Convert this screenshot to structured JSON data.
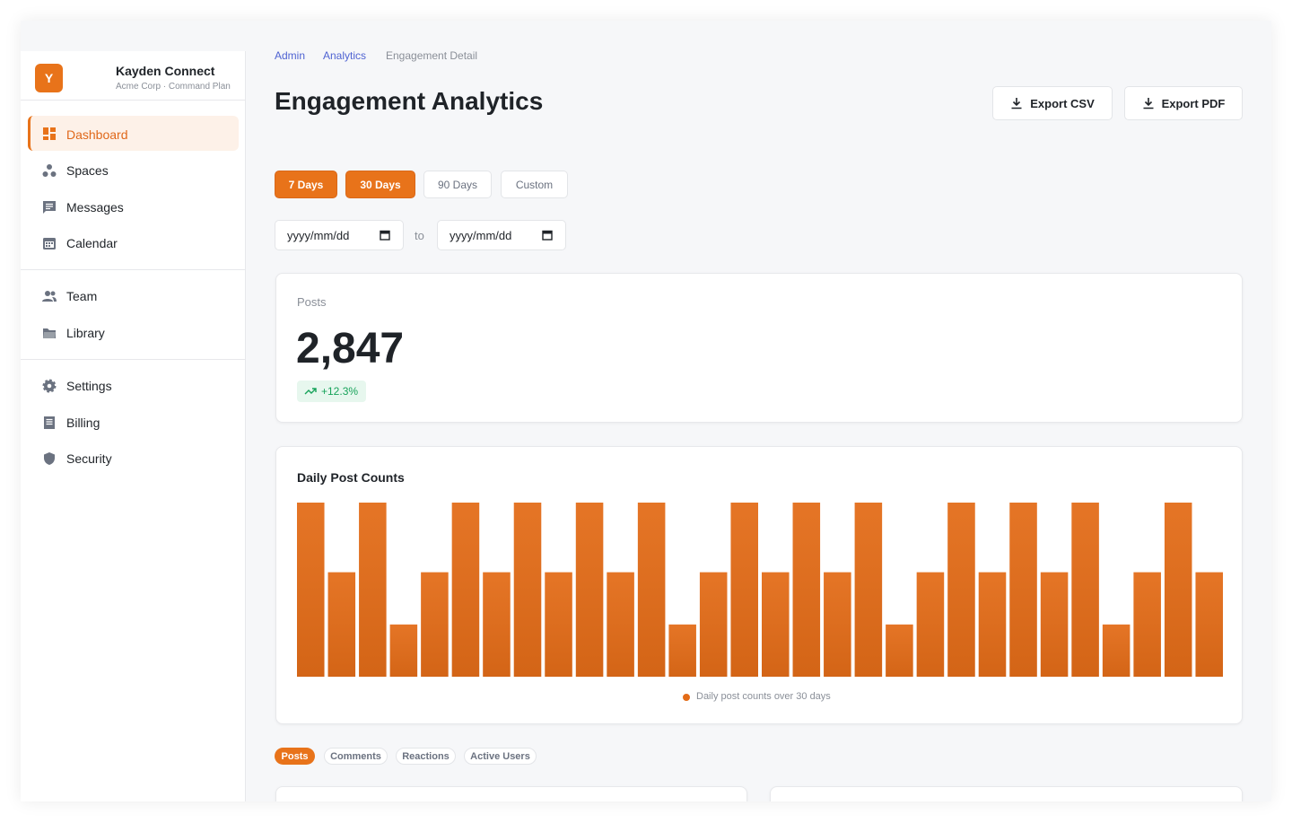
{
  "sidebar": {
    "brand": {
      "initial": "Y",
      "name": "Kayden Connect",
      "subtitle": "Acme Corp · Command Plan"
    },
    "nav": [
      [
        "Dashboard",
        "Spaces",
        "Messages",
        "Calendar"
      ],
      [
        "Team",
        "Library"
      ],
      [
        "Settings",
        "Billing",
        "Security"
      ]
    ]
  },
  "breadcrumb": [
    "Admin",
    "Analytics",
    "Engagement Detail"
  ],
  "header": {
    "title": "Engagement Analytics",
    "actions": [
      "Export CSV",
      "Export PDF"
    ]
  },
  "ranges": [
    "7 Days",
    "30 Days",
    "90 Days",
    "Custom"
  ],
  "date_inputs": {
    "placeholder": "yyyy/mm/dd",
    "separator": "to"
  },
  "stat": {
    "label": "Posts",
    "value": "2,847",
    "change": "+12.3%"
  },
  "chart_data": {
    "type": "bar",
    "title": "Daily Post Counts",
    "color": "#e36c18",
    "values": [
      100,
      60,
      100,
      30,
      60,
      100,
      60,
      100,
      60,
      100,
      60,
      100,
      30,
      60,
      100,
      60,
      100,
      60,
      100,
      30,
      60,
      100,
      60,
      100,
      60,
      100,
      30,
      60,
      100,
      60
    ],
    "legend": "Daily post counts over 30 days"
  },
  "metric_tabs": [
    "Posts",
    "Comments",
    "Reactions",
    "Active Users"
  ]
}
